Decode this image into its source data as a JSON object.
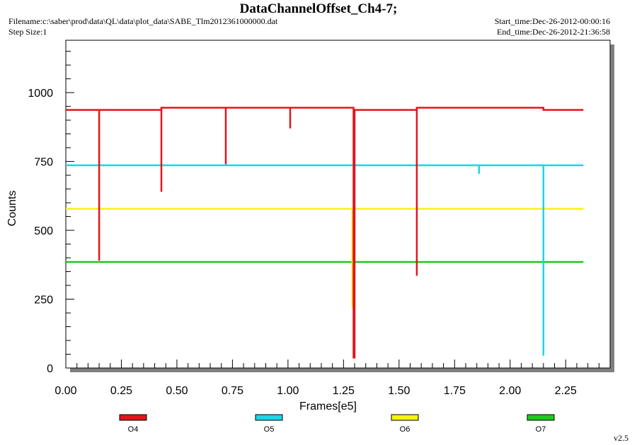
{
  "header": {
    "title": "DataChannelOffset_Ch4-7;",
    "filename": "Filename:c:\\saber\\prod\\data\\QL\\data\\plot_data\\SABE_Tlm2012361000000.dat",
    "step_size": "Step Size:1",
    "start_time": "Start_time:Dec-26-2012-00:00:16",
    "end_time": "End_time:Dec-26-2012-21:36:58"
  },
  "version": "v2.5",
  "chart_data": {
    "type": "line",
    "title": "DataChannelOffset_Ch4-7;",
    "xlabel": "Frames[e5]",
    "ylabel": "Counts",
    "xlim": [
      0,
      2.45
    ],
    "ylim": [
      0,
      1190
    ],
    "x_ticks": [
      "0.00",
      "0.25",
      "0.50",
      "0.75",
      "1.00",
      "1.25",
      "1.50",
      "1.75",
      "2.00",
      "2.25"
    ],
    "x_tick_values": [
      0,
      0.25,
      0.5,
      0.75,
      1.0,
      1.25,
      1.5,
      1.75,
      2.0,
      2.25
    ],
    "y_ticks": [
      "0",
      "250",
      "500",
      "750",
      "1000"
    ],
    "y_tick_values": [
      0,
      250,
      500,
      750,
      1000
    ],
    "grid": false,
    "legend_placement": "bottom",
    "series": [
      {
        "name": "O4",
        "color": "#e0161b",
        "x": [
          0,
          0.15,
          0.15,
          0.15,
          0.43,
          0.43,
          0.43,
          0.43,
          0.72,
          0.72,
          0.72,
          1.01,
          1.01,
          1.01,
          1.295,
          1.295,
          1.3,
          1.3,
          1.58,
          1.58,
          1.58,
          1.58,
          2.15,
          2.15,
          2.33
        ],
        "y": [
          937,
          937,
          390,
          937,
          937,
          640,
          937,
          945,
          945,
          740,
          945,
          945,
          870,
          945,
          945,
          38,
          38,
          937,
          937,
          335,
          937,
          945,
          945,
          937,
          937
        ]
      },
      {
        "name": "O5",
        "color": "#1fd3e8",
        "x": [
          0,
          1.86,
          1.86,
          1.86,
          2.15,
          2.15,
          2.15,
          2.33
        ],
        "y": [
          736,
          736,
          705,
          736,
          736,
          45,
          736,
          736
        ]
      },
      {
        "name": "O6",
        "color": "#f5f50a",
        "x": [
          0,
          1.29,
          1.29,
          1.29,
          2.33
        ],
        "y": [
          578,
          578,
          220,
          578,
          578
        ]
      },
      {
        "name": "O7",
        "color": "#1ec81e",
        "x": [
          0,
          2.33
        ],
        "y": [
          385,
          385
        ]
      }
    ]
  }
}
